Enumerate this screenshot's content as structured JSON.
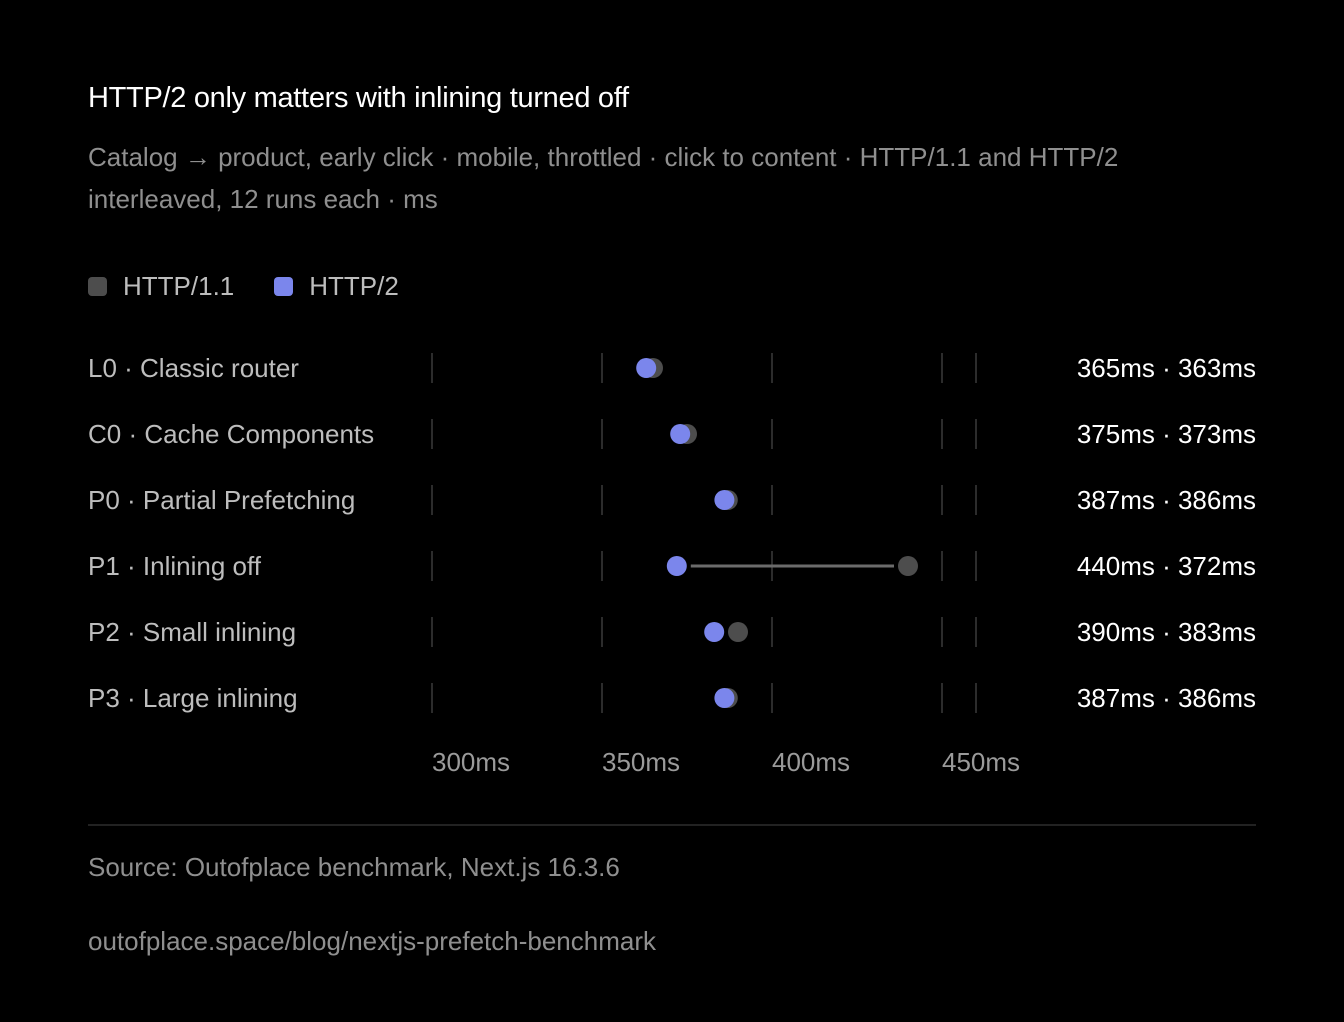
{
  "header": {
    "title": "HTTP/2 only matters with inlining turned off",
    "subtitle": "Catalog → product, early click · mobile, throttled · click to content · HTTP/1.1 and HTTP/2 interleaved, 12 runs each · ms"
  },
  "colors": {
    "http1": "#4d4d4d",
    "http2": "#7b86ec",
    "connector": "#6b6b6b",
    "grid": "#2c2c2c",
    "background": "#000000"
  },
  "footer": {
    "source": "Source: Outofplace benchmark, Next.js 16.3.6",
    "url": "outofplace.space/blog/nextjs-prefetch-benchmark"
  },
  "chart_data": {
    "type": "dumbbell",
    "legend": [
      "HTTP/1.1",
      "HTTP/2"
    ],
    "legend_position": "top-left",
    "x_unit": "ms",
    "xlim": [
      300,
      460
    ],
    "x_ticks": [
      300,
      350,
      400,
      450
    ],
    "x_tick_labels": [
      "300ms",
      "350ms",
      "400ms",
      "450ms"
    ],
    "grid": true,
    "categories": [
      "L0 · Classic router",
      "C0 · Cache Components",
      "P0 · Partial Prefetching",
      "P1 · Inlining off",
      "P2 · Small inlining",
      "P3 · Large inlining"
    ],
    "series": [
      {
        "name": "HTTP/1.1",
        "values": [
          365,
          375,
          387,
          440,
          390,
          387
        ]
      },
      {
        "name": "HTTP/2",
        "values": [
          363,
          373,
          386,
          372,
          383,
          386
        ]
      }
    ],
    "value_labels": [
      "365ms · 363ms",
      "375ms · 373ms",
      "387ms · 386ms",
      "440ms · 372ms",
      "390ms · 383ms",
      "387ms · 386ms"
    ]
  }
}
